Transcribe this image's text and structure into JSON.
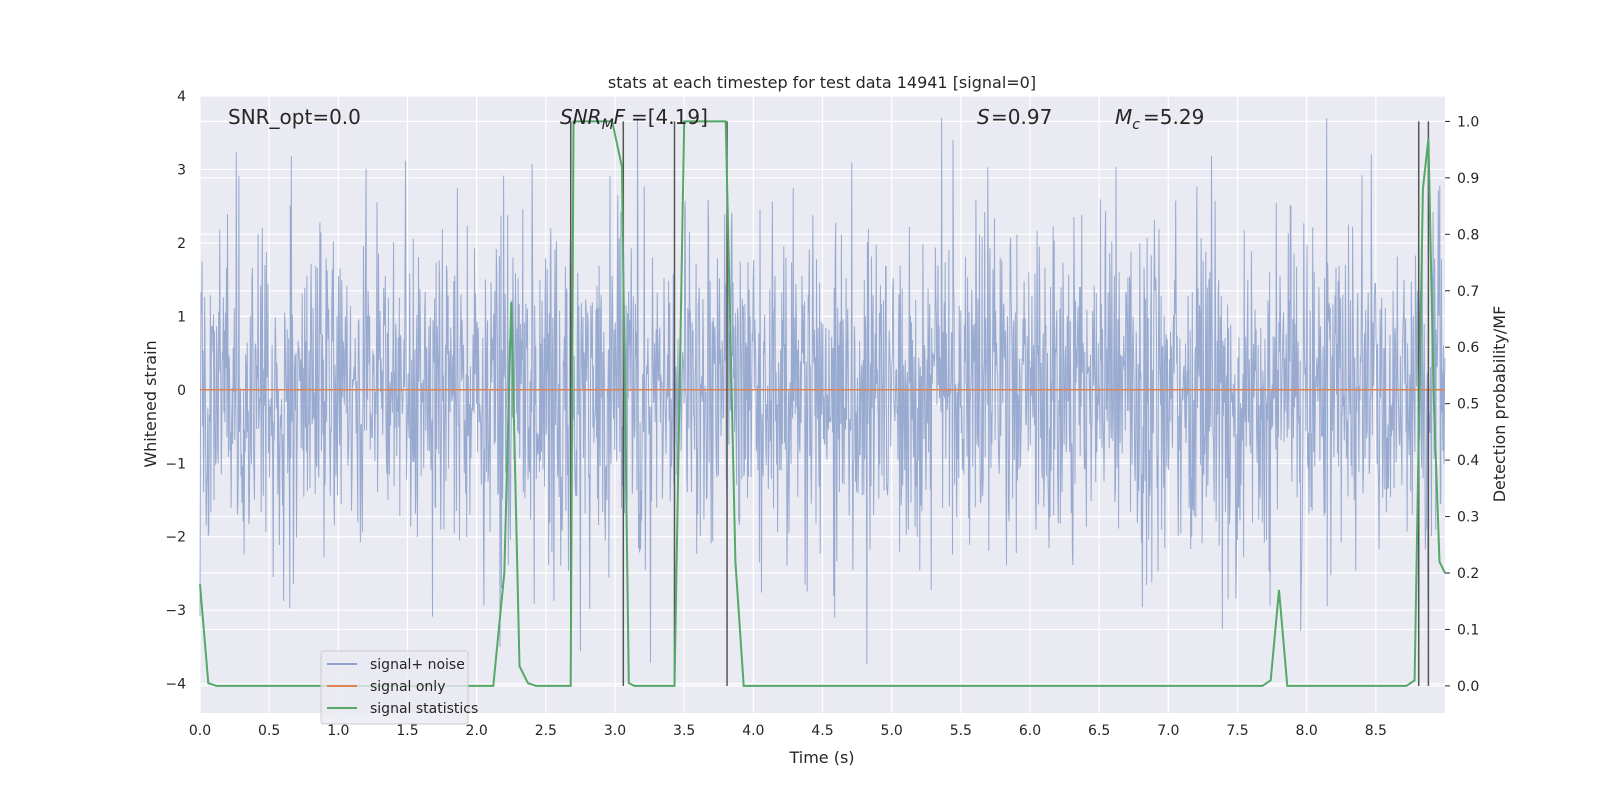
{
  "chart_data": {
    "type": "line",
    "title": "stats at each timestep for test data 14941 [signal=0]",
    "xlabel": "Time (s)",
    "ylabel": "Whitened strain",
    "ylabel_right": "Detection probability/MF",
    "xlim": [
      0.0,
      9.0
    ],
    "ylim": [
      -4.4,
      4.0
    ],
    "ylim_right": [
      -0.048,
      1.045
    ],
    "x_ticks": [
      "0.0",
      "0.5",
      "1.0",
      "1.5",
      "2.0",
      "2.5",
      "3.0",
      "3.5",
      "4.0",
      "4.5",
      "5.0",
      "5.5",
      "6.0",
      "6.5",
      "7.0",
      "7.5",
      "8.0",
      "8.5"
    ],
    "y_ticks": [
      "4",
      "3",
      "2",
      "1",
      "0",
      "−1",
      "−2",
      "−3",
      "−4"
    ],
    "y_right_ticks": [
      "1.0",
      "0.9",
      "0.8",
      "0.7",
      "0.6",
      "0.5",
      "0.4",
      "0.3",
      "0.2",
      "0.1",
      "0.0"
    ],
    "grid": true,
    "legend_position": "lower-left",
    "annotations": {
      "snr_opt": "SNR_opt=0.0",
      "snr_mf": "=[4.19]",
      "s": "=0.97",
      "mc": "=5.29"
    },
    "series": [
      {
        "name": "signal+ noise",
        "color": "#8fa3cc",
        "description_values": "whitened noise samples, approximately Gaussian, range about −3.9 to 3.7",
        "noise_std": 1.0
      },
      {
        "name": "signal only",
        "color": "#dd8452",
        "x": [
          0.0,
          9.0
        ],
        "y": [
          0.0,
          0.0
        ]
      },
      {
        "name": "signal statistics",
        "color": "#55a868",
        "axis": "right",
        "x": [
          0.0,
          0.06,
          0.12,
          2.12,
          2.2,
          2.25,
          2.31,
          2.37,
          2.43,
          2.5,
          2.68,
          2.7,
          2.74,
          2.98,
          3.05,
          3.1,
          3.14,
          3.2,
          3.43,
          3.5,
          3.56,
          3.8,
          3.87,
          3.93,
          7.68,
          7.74,
          7.8,
          7.86,
          8.72,
          8.78,
          8.84,
          8.88,
          8.92,
          8.96,
          9.0
        ],
        "y": [
          0.18,
          0.005,
          0.0,
          0.0,
          0.2,
          0.68,
          0.035,
          0.005,
          0.0,
          0.0,
          0.0,
          1.0,
          1.0,
          1.0,
          0.92,
          0.005,
          0.0,
          0.0,
          0.0,
          1.0,
          1.0,
          1.0,
          0.22,
          0.0,
          0.0,
          0.01,
          0.17,
          0.0,
          0.0,
          0.01,
          0.88,
          0.97,
          0.5,
          0.22,
          0.2
        ]
      }
    ],
    "vlines": {
      "color": "#555555",
      "x": [
        2.68,
        3.06,
        3.43,
        3.81,
        8.81,
        8.88
      ],
      "ymin": 0.0,
      "ymax": 1.0
    }
  }
}
